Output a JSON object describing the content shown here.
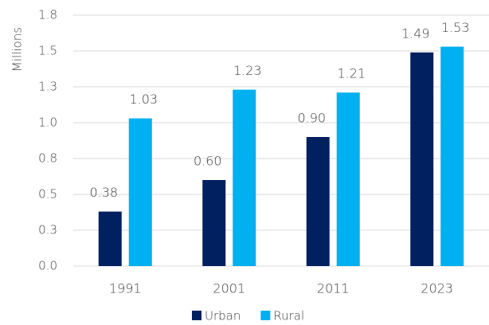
{
  "chart_data": {
    "type": "bar",
    "y_label": "Millions",
    "categories": [
      "1991",
      "2001",
      "2011",
      "2023"
    ],
    "series": [
      {
        "name": "Urban",
        "color": "#002060",
        "values": [
          0.38,
          0.6,
          0.9,
          1.49
        ],
        "value_labels": [
          "0.38",
          "0.60",
          "0.90",
          "1.49"
        ]
      },
      {
        "name": "Rural",
        "color": "#00b0f0",
        "values": [
          1.03,
          1.23,
          1.21,
          1.53
        ],
        "value_labels": [
          "1.03",
          "1.23",
          "1.21",
          "1.53"
        ]
      }
    ],
    "ylim": [
      0,
      1.75
    ],
    "yticks": [
      {
        "value": 0,
        "label": "0.0"
      },
      {
        "value": 0.25,
        "label": "0.3"
      },
      {
        "value": 0.5,
        "label": "0.5"
      },
      {
        "value": 0.75,
        "label": "0.8"
      },
      {
        "value": 1,
        "label": "1.0"
      },
      {
        "value": 1.25,
        "label": "1.3"
      },
      {
        "value": 1.5,
        "label": "1.5"
      },
      {
        "value": 1.75,
        "label": "1.8"
      }
    ],
    "grid": true,
    "legend": "bottom"
  }
}
